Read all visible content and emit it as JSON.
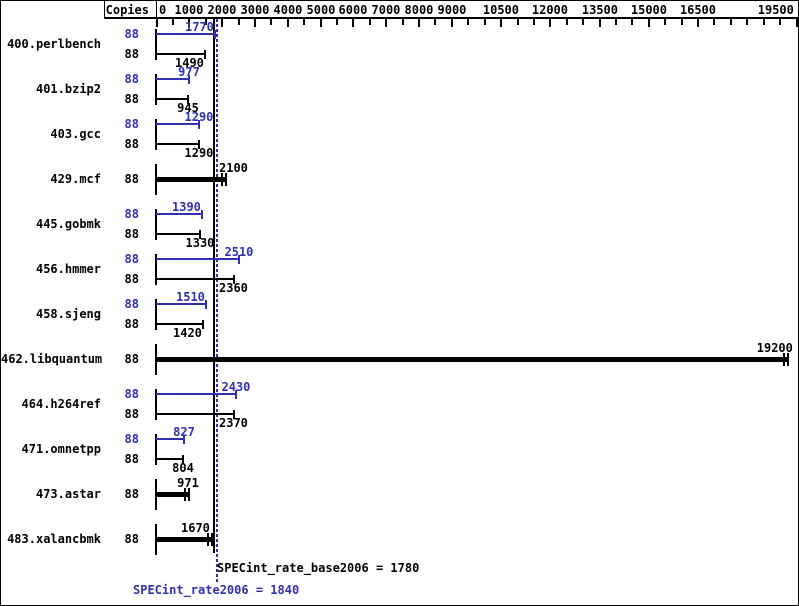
{
  "header": {
    "copies_label": "Copies"
  },
  "axis": {
    "min": 0,
    "max": 19500,
    "minor_tick_step": 500,
    "labeled_ticks": [
      "0",
      "1000",
      "2000",
      "3000",
      "4000",
      "5000",
      "6000",
      "7000",
      "8000",
      "9000",
      "10500",
      "12000",
      "13500",
      "15000",
      "16500",
      "19500"
    ]
  },
  "colors": {
    "peak_blue": "#3030b0",
    "base_black": "#000000",
    "background": "#ffffff"
  },
  "benchmarks": [
    {
      "name": "400.perlbench",
      "bars": [
        {
          "copies": "88",
          "value": 1770,
          "series": "peak",
          "color": "blue",
          "thick": false
        },
        {
          "copies": "88",
          "value": 1490,
          "series": "base",
          "color": "black",
          "thick": false
        }
      ]
    },
    {
      "name": "401.bzip2",
      "bars": [
        {
          "copies": "88",
          "value": 977,
          "series": "peak",
          "color": "blue",
          "thick": false
        },
        {
          "copies": "88",
          "value": 945,
          "series": "base",
          "color": "black",
          "thick": false
        }
      ]
    },
    {
      "name": "403.gcc",
      "bars": [
        {
          "copies": "88",
          "value": 1290,
          "series": "peak",
          "color": "blue",
          "thick": false
        },
        {
          "copies": "88",
          "value": 1290,
          "series": "base",
          "color": "black",
          "thick": false
        }
      ]
    },
    {
      "name": "429.mcf",
      "bars": [
        {
          "copies": "88",
          "value": 2100,
          "series": "base-and-peak",
          "color": "black",
          "thick": true
        }
      ]
    },
    {
      "name": "445.gobmk",
      "bars": [
        {
          "copies": "88",
          "value": 1390,
          "series": "peak",
          "color": "blue",
          "thick": false
        },
        {
          "copies": "88",
          "value": 1330,
          "series": "base",
          "color": "black",
          "thick": false
        }
      ]
    },
    {
      "name": "456.hmmer",
      "bars": [
        {
          "copies": "88",
          "value": 2510,
          "series": "peak",
          "color": "blue",
          "thick": false
        },
        {
          "copies": "88",
          "value": 2360,
          "series": "base",
          "color": "black",
          "thick": false
        }
      ]
    },
    {
      "name": "458.sjeng",
      "bars": [
        {
          "copies": "88",
          "value": 1510,
          "series": "peak",
          "color": "blue",
          "thick": false
        },
        {
          "copies": "88",
          "value": 1420,
          "series": "base",
          "color": "black",
          "thick": false
        }
      ]
    },
    {
      "name": "462.libquantum",
      "bars": [
        {
          "copies": "88",
          "value": 19200,
          "series": "base-and-peak",
          "color": "black",
          "thick": true
        }
      ]
    },
    {
      "name": "464.h264ref",
      "bars": [
        {
          "copies": "88",
          "value": 2430,
          "series": "peak",
          "color": "blue",
          "thick": false
        },
        {
          "copies": "88",
          "value": 2370,
          "series": "base",
          "color": "black",
          "thick": false
        }
      ]
    },
    {
      "name": "471.omnetpp",
      "bars": [
        {
          "copies": "88",
          "value": 827,
          "series": "peak",
          "color": "blue",
          "thick": false
        },
        {
          "copies": "88",
          "value": 804,
          "series": "base",
          "color": "black",
          "thick": false
        }
      ]
    },
    {
      "name": "473.astar",
      "bars": [
        {
          "copies": "88",
          "value": 971,
          "series": "base-and-peak",
          "color": "black",
          "thick": true
        }
      ]
    },
    {
      "name": "483.xalancbmk",
      "bars": [
        {
          "copies": "88",
          "value": 1670,
          "series": "base-and-peak",
          "color": "black",
          "thick": true
        }
      ]
    }
  ],
  "summary": {
    "base_text": "SPECint_rate_base2006 = 1780",
    "peak_text": "SPECint_rate2006 = 1840",
    "base_value": 1780,
    "peak_value": 1840
  },
  "chart_data": {
    "type": "bar",
    "orientation": "horizontal",
    "title": "",
    "categories": [
      "400.perlbench",
      "401.bzip2",
      "403.gcc",
      "429.mcf",
      "445.gobmk",
      "456.hmmer",
      "458.sjeng",
      "462.libquantum",
      "464.h264ref",
      "471.omnetpp",
      "473.astar",
      "483.xalancbmk"
    ],
    "copies_per_benchmark": 88,
    "series": [
      {
        "name": "peak (SPECint_rate2006)",
        "color": "#3030b0",
        "values": [
          1770,
          977,
          1290,
          2100,
          1390,
          2510,
          1510,
          19200,
          2430,
          827,
          971,
          1670
        ]
      },
      {
        "name": "base (SPECint_rate_base2006)",
        "color": "#000000",
        "values": [
          1490,
          945,
          1290,
          2100,
          1330,
          2360,
          1420,
          19200,
          2370,
          804,
          971,
          1670
        ]
      }
    ],
    "single_thick_bar_rows": [
      "429.mcf",
      "462.libquantum",
      "473.astar",
      "483.xalancbmk"
    ],
    "xlabel": "",
    "ylabel": "Copies",
    "xlim": [
      0,
      19500
    ],
    "x_tick_step": 500,
    "x_labeled_ticks": [
      0,
      1000,
      2000,
      3000,
      4000,
      5000,
      6000,
      7000,
      8000,
      9000,
      10500,
      12000,
      13500,
      15000,
      16500,
      19500
    ],
    "grid": false,
    "legend_position": "none",
    "reference_lines": [
      {
        "label": "SPECint_rate_base2006",
        "value": 1780,
        "style": "solid",
        "color": "#000000"
      },
      {
        "label": "SPECint_rate2006",
        "value": 1840,
        "style": "dotted",
        "color": "#3030b0"
      }
    ]
  }
}
